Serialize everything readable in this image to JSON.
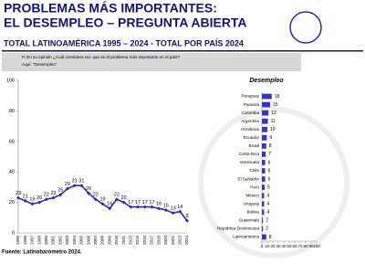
{
  "header": {
    "title_lines": [
      "PROBLEMAS MÁS IMPORTANTES:",
      "EL DESEMPLEO – PREGUNTA ABIERTA"
    ],
    "subtitle": "TOTAL LATINOAMÉRICA 1995 – 2024 - TOTAL POR PAÍS 2024"
  },
  "question": [
    "P. En su opinión ¿Cuál considera Ud. que es el problema más importante en el país?",
    "Aquí: “Desempleo”"
  ],
  "source": "Fuente: Latinobarómetro 2024.",
  "chart_data": [
    {
      "type": "line",
      "categories": [
        "1995",
        "1996",
        "1997",
        "1998",
        "2000",
        "2001",
        "2002",
        "2003",
        "2004",
        "2005",
        "2006",
        "2007",
        "2008",
        "2009",
        "2010",
        "2011",
        "2013",
        "2015",
        "2016",
        "2017",
        "2018",
        "2020",
        "2021",
        "2023",
        "2024"
      ],
      "values": [
        23,
        21,
        19,
        20,
        22,
        23,
        25,
        29,
        31,
        31,
        26,
        22,
        19,
        16,
        22,
        20,
        17,
        17,
        17,
        17,
        16,
        15,
        13,
        14,
        8
      ],
      "color": "#2b2ba6",
      "ylim": [
        0,
        100
      ],
      "yticks": [
        0,
        20,
        40,
        60,
        80,
        100
      ]
    },
    {
      "type": "hbar",
      "title": "Desempleo",
      "categories": [
        "Paraguay",
        "Panamá",
        "Colombia",
        "Argentina",
        "Honduras",
        "Ecuador",
        "Brasil",
        "Costa Rica",
        "Venezuela",
        "Chile",
        "El Salvador",
        "Perú",
        "México",
        "Uruguay",
        "Bolivia",
        "Guatemala",
        "República Dominicana",
        "Latinoamérica"
      ],
      "values": [
        18,
        15,
        12,
        11,
        10,
        9,
        8,
        7,
        6,
        6,
        6,
        5,
        4,
        4,
        4,
        2,
        2,
        8
      ],
      "color": "#3434c8",
      "xlim": [
        0,
        100
      ],
      "xticks": [
        0,
        10,
        20,
        30,
        40,
        50,
        60,
        70,
        80,
        90,
        100
      ]
    }
  ]
}
